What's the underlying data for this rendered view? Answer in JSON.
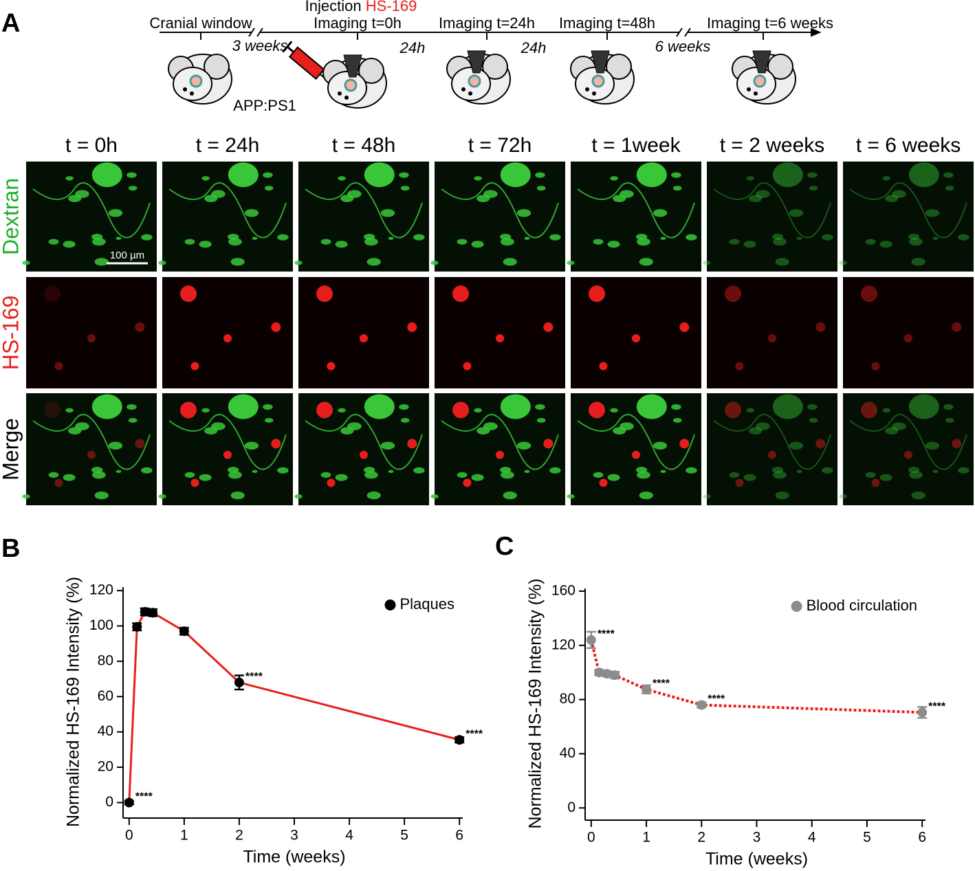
{
  "panel_labels": [
    "A",
    "B",
    "C"
  ],
  "timeline": {
    "cranial_window": "Cranial window",
    "injection": "Injection",
    "injection_agent": "HS-169",
    "steps": [
      "Imaging t=0h",
      "Imaging t=24h",
      "Imaging t=48h",
      "Imaging t=6 weeks"
    ],
    "intervals": [
      "3 weeks",
      "24h",
      "24h",
      "6 weeks"
    ],
    "mouse_model": "APP:PS1"
  },
  "image_grid": {
    "columns": [
      "t = 0h",
      "t = 24h",
      "t = 48h",
      "t = 72h",
      "t = 1week",
      "t = 2 weeks",
      "t = 6 weeks"
    ],
    "rows": [
      {
        "label": "Dextran",
        "color": "#1fae2a"
      },
      {
        "label": "HS-169",
        "color": "#e8201c"
      },
      {
        "label": "Merge",
        "color": "#000000"
      }
    ],
    "scale_bar": "100 µm"
  },
  "chart_data": [
    {
      "type": "line",
      "x_label": "Time (weeks)",
      "y_label": "Normalized HS-169 Intensity (%)",
      "x": [
        0,
        0.143,
        0.286,
        0.429,
        1,
        2,
        6
      ],
      "series": [
        {
          "name": "Plaques",
          "color": "#e8201c",
          "marker_color": "#000000",
          "line_style": "solid",
          "values": [
            0,
            99.5,
            108,
            107.5,
            97,
            68,
            35.5
          ],
          "errors": [
            1,
            2,
            2,
            2,
            2,
            4,
            1.5
          ],
          "point_labels": [
            "****",
            null,
            null,
            null,
            null,
            "****",
            "****"
          ]
        }
      ],
      "xlim": [
        -0.06,
        6.06
      ],
      "ylim": [
        -8,
        122
      ],
      "xticks": [
        0,
        1,
        2,
        3,
        4,
        5,
        6
      ],
      "yticks": [
        0,
        20,
        40,
        60,
        80,
        100,
        120
      ],
      "legend": "upper right"
    },
    {
      "type": "line",
      "x_label": "Time (weeks)",
      "y_label": "Normalized HS-169 Intensity (%)",
      "x": [
        0,
        0.143,
        0.286,
        0.429,
        1,
        2,
        6
      ],
      "series": [
        {
          "name": "Blood circulation",
          "color": "#e8201c",
          "marker_color": "#8c8c8c",
          "line_style": "dotted",
          "values": [
            124,
            100,
            99,
            98,
            87.5,
            76,
            70.5
          ],
          "errors": [
            6,
            2,
            2,
            2.5,
            3,
            2,
            4
          ],
          "point_labels": [
            "****",
            null,
            null,
            null,
            "****",
            "****",
            "****"
          ]
        }
      ],
      "xlim": [
        -0.06,
        6.06
      ],
      "ylim": [
        -8,
        162
      ],
      "xticks": [
        0,
        1,
        2,
        3,
        4,
        5,
        6
      ],
      "yticks": [
        0,
        40,
        80,
        120,
        160
      ],
      "legend": "upper right"
    }
  ]
}
